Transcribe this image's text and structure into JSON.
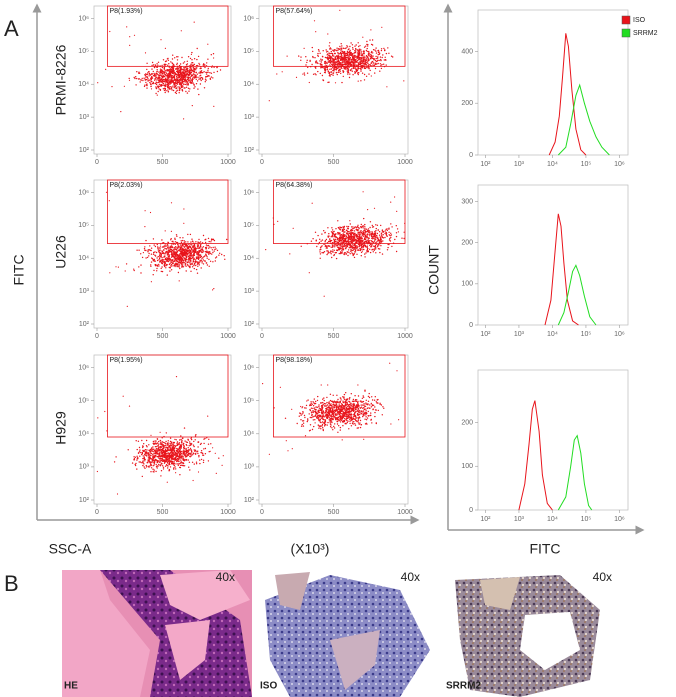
{
  "panel_labels": [
    "A",
    "B"
  ],
  "y_axis_label": "FITC",
  "x_axis_label": "SSC-A",
  "x_unit_label": "(X10³)",
  "count_label": "COUNT",
  "fitc_label": "FITC",
  "cell_lines": [
    "PRMI-8226",
    "U226",
    "H929"
  ],
  "chart_data": [
    {
      "type": "scatter",
      "gate_label": "P8(1.93%)",
      "gate": {
        "xlim": [
          80,
          1000
        ],
        "ylim": [
          35000,
          2400000
        ]
      },
      "cloud": {
        "x": 600,
        "y": 18000
      },
      "log_scale": "y",
      "xlim": [
        0,
        1000
      ],
      "xticks": [
        0,
        500,
        1000
      ],
      "ylim": [
        100,
        2400000
      ],
      "yticks": [
        {
          "value": 100,
          "label": "10²"
        },
        {
          "value": 1000,
          "label": "10³"
        },
        {
          "value": 10000,
          "label": "10⁴"
        },
        {
          "value": 100000,
          "label": "10⁵"
        },
        {
          "value": 1000000,
          "label": "10⁶"
        }
      ],
      "color": "#e8141b"
    },
    {
      "type": "scatter",
      "gate_label": "P8(57.64%)",
      "gate": {
        "xlim": [
          80,
          1000
        ],
        "ylim": [
          35000,
          2400000
        ]
      },
      "cloud": {
        "x": 600,
        "y": 50000
      },
      "log_scale": "y",
      "xlim": [
        0,
        1000
      ],
      "xticks": [
        0,
        500,
        1000
      ],
      "ylim": [
        100,
        2400000
      ],
      "yticks": [
        {
          "value": 100,
          "label": "10²"
        },
        {
          "value": 1000,
          "label": "10³"
        },
        {
          "value": 10000,
          "label": "10⁴"
        },
        {
          "value": 100000,
          "label": "10⁵"
        },
        {
          "value": 1000000,
          "label": "10⁶"
        }
      ],
      "color": "#e8141b"
    },
    {
      "type": "scatter",
      "gate_label": "P8(2.03%)",
      "gate": {
        "xlim": [
          80,
          1000
        ],
        "ylim": [
          28000,
          2400000
        ]
      },
      "cloud": {
        "x": 650,
        "y": 13000
      },
      "log_scale": "y",
      "xlim": [
        0,
        1000
      ],
      "xticks": [
        0,
        500,
        1000
      ],
      "ylim": [
        100,
        2400000
      ],
      "yticks": [
        {
          "value": 100,
          "label": "10²"
        },
        {
          "value": 1000,
          "label": "10³"
        },
        {
          "value": 10000,
          "label": "10⁴"
        },
        {
          "value": 100000,
          "label": "10⁵"
        },
        {
          "value": 1000000,
          "label": "10⁶"
        }
      ],
      "color": "#e8141b"
    },
    {
      "type": "scatter",
      "gate_label": "P8(64.38%)",
      "gate": {
        "xlim": [
          80,
          1000
        ],
        "ylim": [
          28000,
          2400000
        ]
      },
      "cloud": {
        "x": 650,
        "y": 35000
      },
      "log_scale": "y",
      "xlim": [
        0,
        1000
      ],
      "xticks": [
        0,
        500,
        1000
      ],
      "ylim": [
        100,
        2400000
      ],
      "yticks": [
        {
          "value": 100,
          "label": "10²"
        },
        {
          "value": 1000,
          "label": "10³"
        },
        {
          "value": 10000,
          "label": "10⁴"
        },
        {
          "value": 100000,
          "label": "10⁵"
        },
        {
          "value": 1000000,
          "label": "10⁶"
        }
      ],
      "color": "#e8141b"
    },
    {
      "type": "scatter",
      "gate_label": "P8(1.95%)",
      "gate": {
        "xlim": [
          80,
          1000
        ],
        "ylim": [
          8000,
          2400000
        ]
      },
      "cloud": {
        "x": 550,
        "y": 2500
      },
      "log_scale": "y",
      "xlim": [
        0,
        1000
      ],
      "xticks": [
        0,
        500,
        1000
      ],
      "ylim": [
        100,
        2400000
      ],
      "yticks": [
        {
          "value": 100,
          "label": "10²"
        },
        {
          "value": 1000,
          "label": "10³"
        },
        {
          "value": 10000,
          "label": "10⁴"
        },
        {
          "value": 100000,
          "label": "10⁵"
        },
        {
          "value": 1000000,
          "label": "10⁶"
        }
      ],
      "color": "#e8141b"
    },
    {
      "type": "scatter",
      "gate_label": "P8(98.18%)",
      "gate": {
        "xlim": [
          80,
          1000
        ],
        "ylim": [
          8000,
          2400000
        ]
      },
      "cloud": {
        "x": 550,
        "y": 45000
      },
      "log_scale": "y",
      "xlim": [
        0,
        1000
      ],
      "xticks": [
        0,
        500,
        1000
      ],
      "ylim": [
        100,
        2400000
      ],
      "yticks": [
        {
          "value": 100,
          "label": "10²"
        },
        {
          "value": 1000,
          "label": "10³"
        },
        {
          "value": 10000,
          "label": "10⁴"
        },
        {
          "value": 100000,
          "label": "10⁵"
        },
        {
          "value": 1000000,
          "label": "10⁶"
        }
      ],
      "color": "#e8141b"
    },
    {
      "type": "line",
      "log_scale": "x",
      "legend": "top-right",
      "xlim": [
        60,
        1800000
      ],
      "xticks": [
        {
          "value": 100,
          "label": "10²"
        },
        {
          "value": 1000,
          "label": "10³"
        },
        {
          "value": 10000,
          "label": "10⁴"
        },
        {
          "value": 100000,
          "label": "10⁵"
        },
        {
          "value": 1000000,
          "label": "10⁶"
        }
      ],
      "ylim": [
        0,
        560
      ],
      "yticks": [
        0,
        200,
        400
      ],
      "series": [
        {
          "name": "ISO",
          "color": "#e8141b",
          "x": [
            8000,
            12000,
            16000,
            20000,
            25000,
            30000,
            38000,
            50000,
            70000,
            100000
          ],
          "values": [
            0,
            50,
            150,
            300,
            470,
            420,
            250,
            100,
            20,
            0
          ]
        },
        {
          "name": "SRRM2",
          "color": "#22dd22",
          "x": [
            15000,
            25000,
            35000,
            50000,
            65000,
            90000,
            130000,
            200000,
            300000,
            500000
          ],
          "values": [
            0,
            30,
            120,
            230,
            270,
            200,
            130,
            70,
            30,
            0
          ]
        }
      ]
    },
    {
      "type": "line",
      "log_scale": "x",
      "xlim": [
        60,
        1800000
      ],
      "xticks": [
        {
          "value": 100,
          "label": "10²"
        },
        {
          "value": 1000,
          "label": "10³"
        },
        {
          "value": 10000,
          "label": "10⁴"
        },
        {
          "value": 100000,
          "label": "10⁵"
        },
        {
          "value": 1000000,
          "label": "10⁶"
        }
      ],
      "ylim": [
        0,
        340
      ],
      "yticks": [
        0,
        100,
        200,
        300
      ],
      "series": [
        {
          "color": "#e8141b",
          "x": [
            6000,
            9000,
            12000,
            15000,
            18000,
            22000,
            28000,
            40000,
            60000
          ],
          "values": [
            0,
            60,
            180,
            270,
            240,
            150,
            60,
            10,
            0
          ]
        },
        {
          "color": "#22dd22",
          "x": [
            15000,
            22000,
            30000,
            40000,
            50000,
            65000,
            90000,
            130000,
            200000
          ],
          "values": [
            0,
            30,
            80,
            130,
            145,
            120,
            70,
            20,
            0
          ]
        }
      ]
    },
    {
      "type": "line",
      "log_scale": "x",
      "xlim": [
        60,
        1800000
      ],
      "xticks": [
        {
          "value": 100,
          "label": "10²"
        },
        {
          "value": 1000,
          "label": "10³"
        },
        {
          "value": 10000,
          "label": "10⁴"
        },
        {
          "value": 100000,
          "label": "10⁵"
        },
        {
          "value": 1000000,
          "label": "10⁶"
        }
      ],
      "ylim": [
        0,
        320
      ],
      "yticks": [
        0,
        100,
        200
      ],
      "series": [
        {
          "color": "#e8141b",
          "x": [
            1000,
            1500,
            2000,
            2500,
            3000,
            4000,
            5000,
            7000,
            10000
          ],
          "values": [
            0,
            60,
            150,
            230,
            250,
            180,
            80,
            15,
            0
          ]
        },
        {
          "color": "#22dd22",
          "x": [
            15000,
            25000,
            35000,
            45000,
            55000,
            70000,
            90000,
            120000,
            150000
          ],
          "values": [
            0,
            30,
            100,
            160,
            170,
            130,
            60,
            10,
            0
          ]
        }
      ]
    }
  ],
  "images": [
    {
      "label": "HE",
      "magnification": "40x"
    },
    {
      "label": "ISO",
      "magnification": "40x"
    },
    {
      "label": "SRRM2",
      "magnification": "40x"
    }
  ]
}
